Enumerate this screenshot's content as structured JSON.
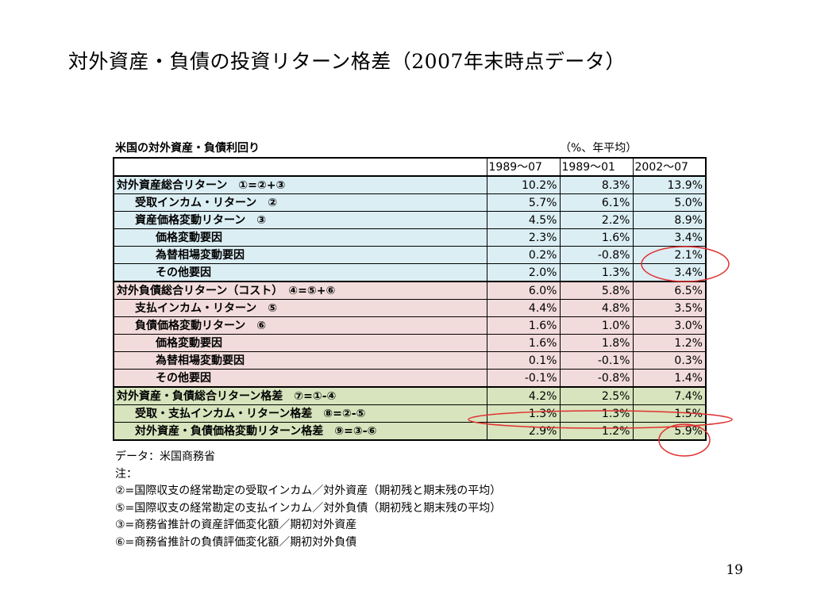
{
  "slide": {
    "title": "対外資産・負債の投資リターン格差（2007年末時点データ）",
    "page_number": "19"
  },
  "table": {
    "caption": "米国の対外資産・負債利回り",
    "unit": "（%、年平均）",
    "columns": [
      "1989～07",
      "1989～01",
      "2002～07"
    ],
    "rows": [
      {
        "group": "asset",
        "indent": 0,
        "label": "対外資産総合リターン　①=②+③",
        "values": [
          "10.2%",
          "8.3%",
          "13.9%"
        ]
      },
      {
        "group": "asset",
        "indent": 1,
        "label": "受取インカム・リターン　②",
        "values": [
          "5.7%",
          "6.1%",
          "5.0%"
        ]
      },
      {
        "group": "asset",
        "indent": 1,
        "label": "資産価格変動リターン　③",
        "values": [
          "4.5%",
          "2.2%",
          "8.9%"
        ]
      },
      {
        "group": "asset",
        "indent": 2,
        "label": "価格変動要因",
        "values": [
          "2.3%",
          "1.6%",
          "3.4%"
        ]
      },
      {
        "group": "asset",
        "indent": 2,
        "label": "為替相場変動要因",
        "values": [
          "0.2%",
          "-0.8%",
          "2.1%"
        ]
      },
      {
        "group": "asset",
        "indent": 2,
        "label": "その他要因",
        "values": [
          "2.0%",
          "1.3%",
          "3.4%"
        ]
      },
      {
        "group": "liab",
        "indent": 0,
        "label": "対外負債総合リターン（コスト）　④=⑤+⑥",
        "values": [
          "6.0%",
          "5.8%",
          "6.5%"
        ]
      },
      {
        "group": "liab",
        "indent": 1,
        "label": "支払インカム・リターン　⑤",
        "values": [
          "4.4%",
          "4.8%",
          "3.5%"
        ]
      },
      {
        "group": "liab",
        "indent": 1,
        "label": "負債価格変動リターン　⑥",
        "values": [
          "1.6%",
          "1.0%",
          "3.0%"
        ]
      },
      {
        "group": "liab",
        "indent": 2,
        "label": "価格変動要因",
        "values": [
          "1.6%",
          "1.8%",
          "1.2%"
        ]
      },
      {
        "group": "liab",
        "indent": 2,
        "label": "為替相場変動要因",
        "values": [
          "0.1%",
          "-0.1%",
          "0.3%"
        ]
      },
      {
        "group": "liab",
        "indent": 2,
        "label": "その他要因",
        "values": [
          "-0.1%",
          "-0.8%",
          "1.4%"
        ]
      },
      {
        "group": "gap",
        "indent": 0,
        "label": "対外資産・負債総合リターン格差　⑦=①-④",
        "values": [
          "4.2%",
          "2.5%",
          "7.4%"
        ]
      },
      {
        "group": "gap",
        "indent": 1,
        "label": "受取・支払インカム・リターン格差　⑧=②-⑤",
        "values": [
          "1.3%",
          "1.3%",
          "1.5%"
        ]
      },
      {
        "group": "gap",
        "indent": 1,
        "label": "対外資産・負債価格変動リターン格差　⑨=③-⑥",
        "values": [
          "2.9%",
          "1.2%",
          "5.9%"
        ]
      }
    ]
  },
  "notes": [
    "データ：米国商務省",
    "注：",
    "②=国際収支の経常勘定の受取インカム／対外資産（期初残と期末残の平均）",
    "⑤=国際収支の経常勘定の支払インカム／対外負債（期初残と期末残の平均）",
    "③=商務省推計の資産評価変化額／期初対外資産",
    "⑥=商務省推計の負債評価変化額／期初対外負債"
  ],
  "colors": {
    "asset_row": "#dbeef4",
    "liability_row": "#f2dcdb",
    "gap_row": "#d7e4bd",
    "highlight_ellipse": "#e03030"
  }
}
